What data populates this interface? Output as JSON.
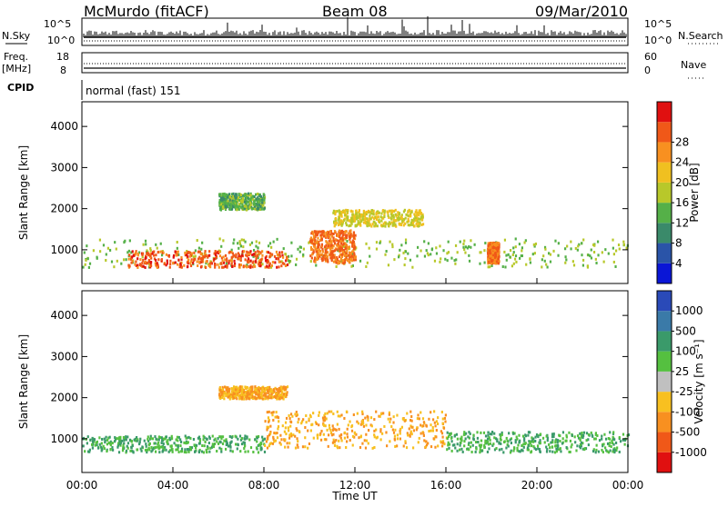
{
  "header": {
    "station": "McMurdo (fitACF)",
    "beam": "Beam 08",
    "date": "09/Mar/2010"
  },
  "top_panels": {
    "nsky_label": "N.Sky",
    "nsky_ticks": [
      "10^5",
      "10^0"
    ],
    "nsearch_label": "N.Search",
    "nsearch_ticks": [
      "10^5",
      "10^0"
    ],
    "freq_label_1": "Freq.",
    "freq_label_2": "[MHz]",
    "freq_ticks": [
      "18",
      "8"
    ],
    "nave_label": "Nave",
    "nave_ticks": [
      "60",
      "0"
    ],
    "cpid_label": "CPID",
    "cpid_value": "normal (fast) 151"
  },
  "chart_data": [
    {
      "type": "heatmap",
      "ylabel": "Slant Range [km]",
      "y_ticks": [
        "1000",
        "2000",
        "3000",
        "4000"
      ],
      "ylim": [
        180,
        4600
      ],
      "colorbar": {
        "label": "Power [dB]",
        "ticks": [
          "4",
          "8",
          "12",
          "16",
          "20",
          "24",
          "28"
        ],
        "colors": [
          "#0a16d6",
          "#2a54a8",
          "#3a8a6a",
          "#55b048",
          "#b8c82a",
          "#f0c020",
          "#f89020",
          "#f05818",
          "#e01010"
        ]
      },
      "regions": [
        {
          "t": [
            0,
            24
          ],
          "range": [
            600,
            1300
          ],
          "value": 14
        },
        {
          "t": [
            2,
            9
          ],
          "range": [
            600,
            1000
          ],
          "value": 28
        },
        {
          "t": [
            10,
            12
          ],
          "range": [
            700,
            1500
          ],
          "value": 26
        },
        {
          "t": [
            17.8,
            18.3
          ],
          "range": [
            700,
            1200
          ],
          "value": 26
        },
        {
          "t": [
            6,
            8
          ],
          "range": [
            2000,
            2400
          ],
          "value": 12
        },
        {
          "t": [
            11,
            15
          ],
          "range": [
            1600,
            2000
          ],
          "value": 18
        }
      ]
    },
    {
      "type": "heatmap",
      "xlabel": "Time UT",
      "ylabel": "Slant Range [km]",
      "x_ticks": [
        "00:00",
        "04:00",
        "08:00",
        "12:00",
        "16:00",
        "20:00",
        "00:00"
      ],
      "y_ticks": [
        "1000",
        "2000",
        "3000",
        "4000"
      ],
      "ylim": [
        180,
        4600
      ],
      "colorbar": {
        "label": "Velocity [m s⁻¹]",
        "ticks": [
          "1000",
          "500",
          "100",
          "25",
          "-25",
          "-100",
          "-500",
          "-1000"
        ],
        "colors": [
          "#2a4ab8",
          "#3a7aa8",
          "#3a9a6a",
          "#55c040",
          "#c0c0c0",
          "#f8c020",
          "#f89020",
          "#f05818",
          "#e01010"
        ]
      },
      "regions": [
        {
          "t": [
            0,
            8
          ],
          "range": [
            700,
            1100
          ],
          "value": 100
        },
        {
          "t": [
            8,
            16
          ],
          "range": [
            800,
            1700
          ],
          "value": -100
        },
        {
          "t": [
            16,
            24
          ],
          "range": [
            700,
            1200
          ],
          "value": 100
        },
        {
          "t": [
            6,
            9
          ],
          "range": [
            2000,
            2300
          ],
          "value": -100
        }
      ]
    }
  ]
}
